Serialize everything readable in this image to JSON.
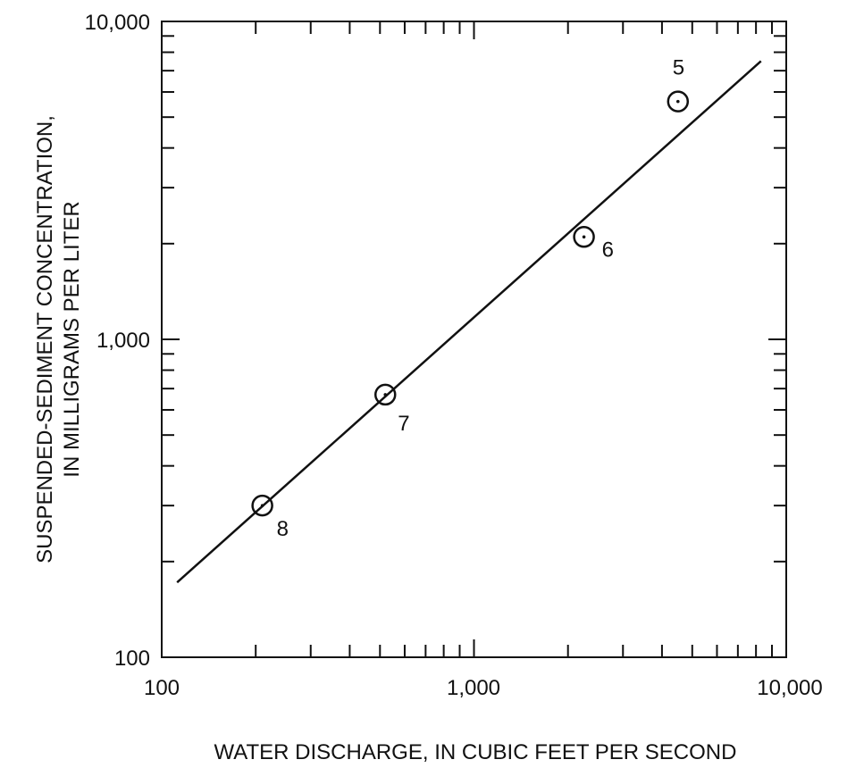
{
  "chart_data": {
    "type": "scatter",
    "title": "",
    "xlabel": "WATER DISCHARGE, IN CUBIC FEET PER SECOND",
    "ylabel_lines": [
      "SUSPENDED-SEDIMENT CONCENTRATION,",
      "IN MILLIGRAMS PER LITER"
    ],
    "x_scale": "log",
    "y_scale": "log",
    "xlim": [
      100,
      10000
    ],
    "ylim": [
      100,
      10000
    ],
    "x_tick_labels": [
      "100",
      "1,000",
      "10,000"
    ],
    "y_tick_labels": [
      "100",
      "1,000",
      "10,000"
    ],
    "grid": false,
    "points": [
      {
        "label": "5",
        "x": 4500,
        "y": 5600
      },
      {
        "label": "6",
        "x": 2250,
        "y": 2100
      },
      {
        "label": "7",
        "x": 520,
        "y": 670
      },
      {
        "label": "8",
        "x": 210,
        "y": 300
      }
    ],
    "fit_line": {
      "x": [
        112,
        8300
      ],
      "y": [
        172,
        7500
      ]
    }
  }
}
